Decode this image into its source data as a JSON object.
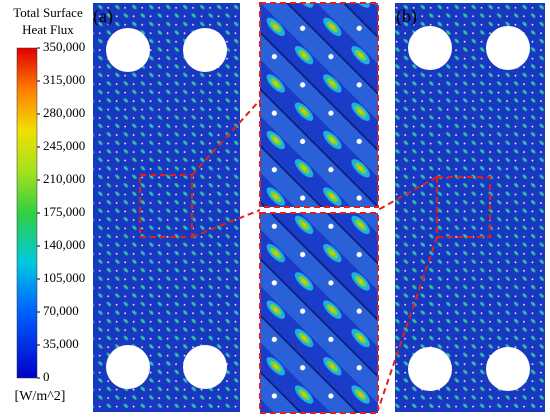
{
  "chart_data": {
    "type": "contour",
    "title_lines": [
      "Total Surface",
      "Heat Flux"
    ],
    "colorbar": {
      "label": "[W/m^2]",
      "lim": [
        0,
        350000
      ],
      "ticks": [
        0,
        {
          "value": 35000,
          "label": "35,000"
        },
        {
          "value": 70000,
          "label": "70,000"
        },
        {
          "value": 105000,
          "label": "105,000"
        },
        {
          "value": 140000,
          "label": "140,000"
        },
        {
          "value": 175000,
          "label": "175,000"
        },
        {
          "value": 210000,
          "label": "210,000"
        },
        {
          "value": 245000,
          "label": "245,000"
        },
        {
          "value": 280000,
          "label": "280,000"
        },
        {
          "value": 315000,
          "label": "315,000"
        },
        {
          "value": 350000,
          "label": "350,000"
        }
      ]
    },
    "panel_labels": [
      "(a)",
      "(b)"
    ]
  }
}
